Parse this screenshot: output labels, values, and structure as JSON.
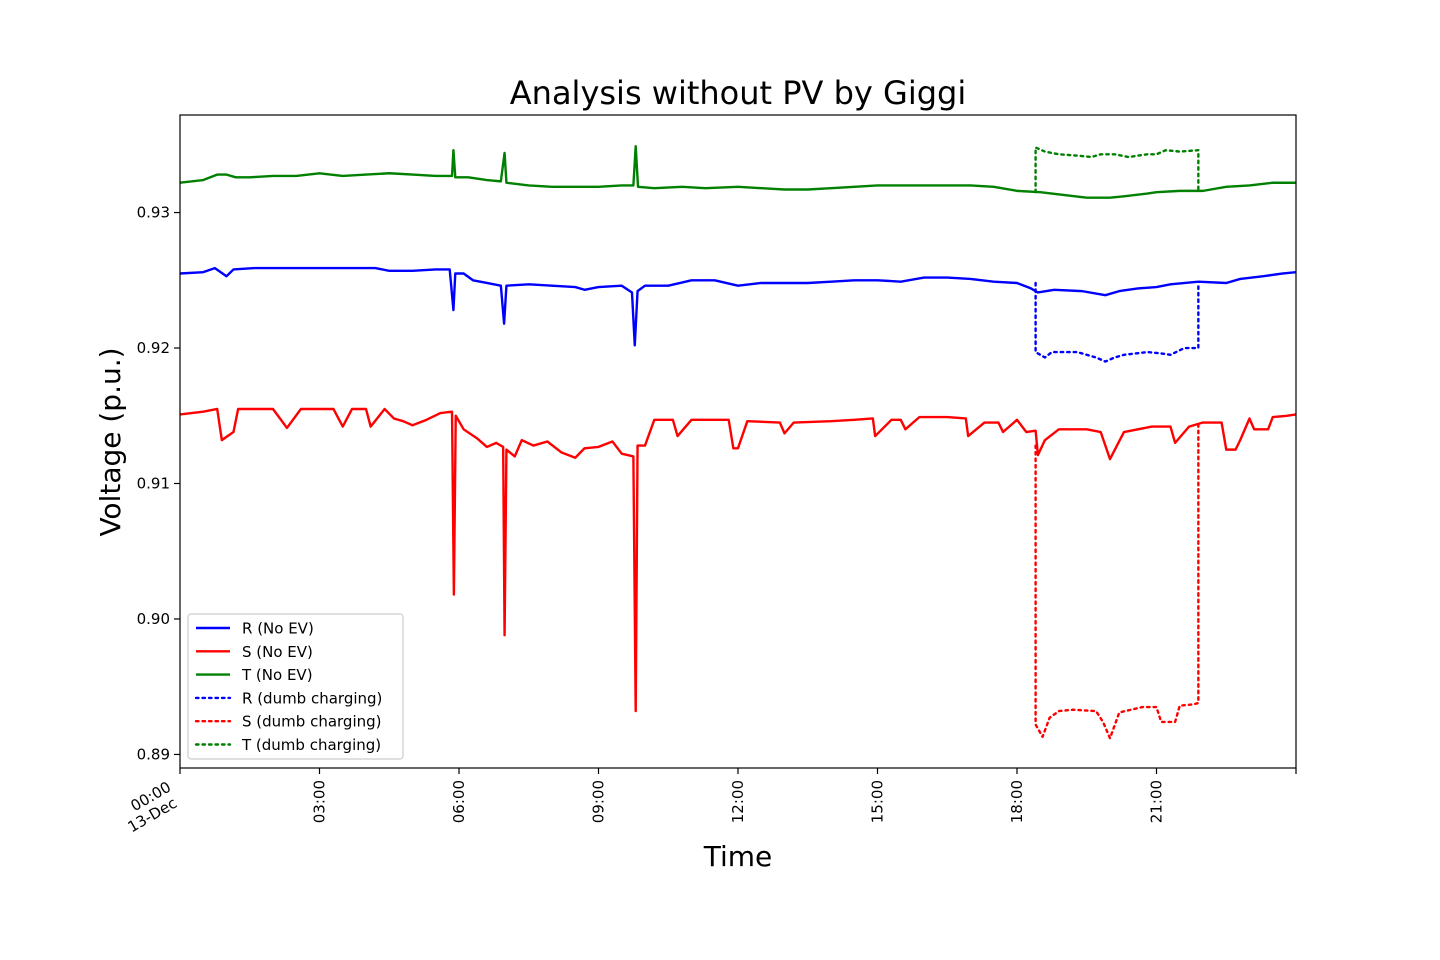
{
  "chart_data": {
    "type": "line",
    "title": "Analysis without PV by Giggi",
    "xlabel": "Time",
    "ylabel": "Voltage (p.u.)",
    "xlim": [
      "00:00",
      "24:00"
    ],
    "ylim": [
      0.889,
      0.9372
    ],
    "x_ticks": [
      {
        "t": 0,
        "label": "00:00",
        "sublabel": "13-Dec"
      },
      {
        "t": 3,
        "label": "03:00"
      },
      {
        "t": 6,
        "label": "06:00"
      },
      {
        "t": 9,
        "label": "09:00"
      },
      {
        "t": 12,
        "label": "12:00"
      },
      {
        "t": 15,
        "label": "15:00"
      },
      {
        "t": 18,
        "label": "18:00"
      },
      {
        "t": 21,
        "label": "21:00"
      },
      {
        "t": 24,
        "label": ""
      }
    ],
    "y_ticks": [
      {
        "v": 0.89,
        "label": "0.89"
      },
      {
        "v": 0.9,
        "label": "0.90"
      },
      {
        "v": 0.91,
        "label": "0.91"
      },
      {
        "v": 0.92,
        "label": "0.92"
      },
      {
        "v": 0.93,
        "label": "0.93"
      }
    ],
    "grid": false,
    "legend_position": "lower-left",
    "series": [
      {
        "name": "R (No EV)",
        "color": "#0000ff",
        "style": "solid",
        "points": [
          [
            0,
            0.9255
          ],
          [
            0.5,
            0.9256
          ],
          [
            0.75,
            0.9259
          ],
          [
            1.0,
            0.9253
          ],
          [
            1.15,
            0.9258
          ],
          [
            1.6,
            0.9259
          ],
          [
            2.3,
            0.9259
          ],
          [
            3.0,
            0.9259
          ],
          [
            3.5,
            0.9259
          ],
          [
            4.2,
            0.9259
          ],
          [
            4.5,
            0.9257
          ],
          [
            5.0,
            0.9257
          ],
          [
            5.5,
            0.9258
          ],
          [
            5.8,
            0.9258
          ],
          [
            5.88,
            0.9228
          ],
          [
            5.92,
            0.9255
          ],
          [
            6.1,
            0.9255
          ],
          [
            6.3,
            0.925
          ],
          [
            6.6,
            0.9248
          ],
          [
            6.9,
            0.9246
          ],
          [
            6.97,
            0.9218
          ],
          [
            7.02,
            0.9246
          ],
          [
            7.5,
            0.9247
          ],
          [
            8.0,
            0.9246
          ],
          [
            8.5,
            0.9245
          ],
          [
            8.7,
            0.9243
          ],
          [
            9.0,
            0.9245
          ],
          [
            9.5,
            0.9246
          ],
          [
            9.72,
            0.9241
          ],
          [
            9.78,
            0.9202
          ],
          [
            9.84,
            0.9242
          ],
          [
            10.0,
            0.9246
          ],
          [
            10.5,
            0.9246
          ],
          [
            11.0,
            0.925
          ],
          [
            11.5,
            0.925
          ],
          [
            12.0,
            0.9246
          ],
          [
            12.5,
            0.9248
          ],
          [
            13.0,
            0.9248
          ],
          [
            13.5,
            0.9248
          ],
          [
            14.0,
            0.9249
          ],
          [
            14.5,
            0.925
          ],
          [
            15.0,
            0.925
          ],
          [
            15.5,
            0.9249
          ],
          [
            16.0,
            0.9252
          ],
          [
            16.5,
            0.9252
          ],
          [
            17.0,
            0.9251
          ],
          [
            17.5,
            0.9249
          ],
          [
            18.0,
            0.9248
          ],
          [
            18.3,
            0.9244
          ],
          [
            18.45,
            0.9241
          ],
          [
            18.8,
            0.9243
          ],
          [
            19.4,
            0.9242
          ],
          [
            19.9,
            0.9239
          ],
          [
            20.2,
            0.9242
          ],
          [
            20.6,
            0.9244
          ],
          [
            21.0,
            0.9245
          ],
          [
            21.3,
            0.9247
          ],
          [
            21.9,
            0.9249
          ],
          [
            22.5,
            0.9248
          ],
          [
            22.8,
            0.9251
          ],
          [
            23.3,
            0.9253
          ],
          [
            23.7,
            0.9255
          ],
          [
            24,
            0.9256
          ]
        ]
      },
      {
        "name": "S (No EV)",
        "color": "#ff0000",
        "style": "solid",
        "points": [
          [
            0,
            0.9151
          ],
          [
            0.5,
            0.9153
          ],
          [
            0.8,
            0.9155
          ],
          [
            0.9,
            0.9132
          ],
          [
            1.15,
            0.9138
          ],
          [
            1.25,
            0.9155
          ],
          [
            2.0,
            0.9155
          ],
          [
            2.3,
            0.9141
          ],
          [
            2.6,
            0.9155
          ],
          [
            3.0,
            0.9155
          ],
          [
            3.3,
            0.9155
          ],
          [
            3.5,
            0.9142
          ],
          [
            3.7,
            0.9155
          ],
          [
            4.0,
            0.9155
          ],
          [
            4.1,
            0.9142
          ],
          [
            4.4,
            0.9155
          ],
          [
            4.6,
            0.9148
          ],
          [
            4.8,
            0.9146
          ],
          [
            5.0,
            0.9143
          ],
          [
            5.3,
            0.9147
          ],
          [
            5.6,
            0.9152
          ],
          [
            5.85,
            0.9153
          ],
          [
            5.89,
            0.9018
          ],
          [
            5.93,
            0.915
          ],
          [
            6.1,
            0.914
          ],
          [
            6.4,
            0.9133
          ],
          [
            6.6,
            0.9127
          ],
          [
            6.8,
            0.913
          ],
          [
            6.95,
            0.9127
          ],
          [
            6.98,
            0.8988
          ],
          [
            7.02,
            0.9125
          ],
          [
            7.2,
            0.912
          ],
          [
            7.35,
            0.9132
          ],
          [
            7.6,
            0.9128
          ],
          [
            7.9,
            0.9131
          ],
          [
            8.2,
            0.9123
          ],
          [
            8.5,
            0.9119
          ],
          [
            8.7,
            0.9126
          ],
          [
            9.0,
            0.9127
          ],
          [
            9.3,
            0.9131
          ],
          [
            9.5,
            0.9122
          ],
          [
            9.75,
            0.912
          ],
          [
            9.8,
            0.8932
          ],
          [
            9.84,
            0.9128
          ],
          [
            10.0,
            0.9128
          ],
          [
            10.2,
            0.9147
          ],
          [
            10.6,
            0.9147
          ],
          [
            10.7,
            0.9135
          ],
          [
            11.0,
            0.9147
          ],
          [
            11.5,
            0.9147
          ],
          [
            11.8,
            0.9147
          ],
          [
            11.9,
            0.9126
          ],
          [
            12.0,
            0.9126
          ],
          [
            12.2,
            0.9146
          ],
          [
            12.9,
            0.9145
          ],
          [
            13.0,
            0.9137
          ],
          [
            13.2,
            0.9145
          ],
          [
            14.0,
            0.9146
          ],
          [
            14.5,
            0.9147
          ],
          [
            14.9,
            0.9148
          ],
          [
            14.95,
            0.9135
          ],
          [
            15.3,
            0.9147
          ],
          [
            15.5,
            0.9147
          ],
          [
            15.6,
            0.914
          ],
          [
            15.9,
            0.9149
          ],
          [
            16.5,
            0.9149
          ],
          [
            16.9,
            0.9148
          ],
          [
            16.95,
            0.9135
          ],
          [
            17.3,
            0.9145
          ],
          [
            17.6,
            0.9145
          ],
          [
            17.7,
            0.9138
          ],
          [
            18.0,
            0.9147
          ],
          [
            18.2,
            0.9138
          ],
          [
            18.4,
            0.9139
          ],
          [
            18.45,
            0.9121
          ],
          [
            18.6,
            0.9132
          ],
          [
            18.9,
            0.914
          ],
          [
            19.5,
            0.914
          ],
          [
            19.8,
            0.9138
          ],
          [
            20.0,
            0.9118
          ],
          [
            20.3,
            0.9138
          ],
          [
            20.9,
            0.9142
          ],
          [
            21.3,
            0.9142
          ],
          [
            21.4,
            0.913
          ],
          [
            21.7,
            0.9142
          ],
          [
            22.0,
            0.9145
          ],
          [
            22.4,
            0.9145
          ],
          [
            22.5,
            0.9125
          ],
          [
            22.7,
            0.9125
          ],
          [
            22.8,
            0.9132
          ],
          [
            23.0,
            0.9148
          ],
          [
            23.1,
            0.914
          ],
          [
            23.4,
            0.914
          ],
          [
            23.5,
            0.9149
          ],
          [
            23.8,
            0.915
          ],
          [
            24,
            0.9151
          ]
        ]
      },
      {
        "name": "T (No EV)",
        "color": "#008000",
        "style": "solid",
        "points": [
          [
            0,
            0.9322
          ],
          [
            0.5,
            0.9324
          ],
          [
            0.8,
            0.9328
          ],
          [
            1.0,
            0.9328
          ],
          [
            1.2,
            0.9326
          ],
          [
            1.5,
            0.9326
          ],
          [
            2.0,
            0.9327
          ],
          [
            2.5,
            0.9327
          ],
          [
            3.0,
            0.9329
          ],
          [
            3.5,
            0.9327
          ],
          [
            4.0,
            0.9328
          ],
          [
            4.5,
            0.9329
          ],
          [
            5.0,
            0.9328
          ],
          [
            5.5,
            0.9327
          ],
          [
            5.85,
            0.9327
          ],
          [
            5.88,
            0.9346
          ],
          [
            5.92,
            0.9326
          ],
          [
            6.2,
            0.9326
          ],
          [
            6.6,
            0.9324
          ],
          [
            6.9,
            0.9323
          ],
          [
            6.98,
            0.9344
          ],
          [
            7.02,
            0.9322
          ],
          [
            7.5,
            0.932
          ],
          [
            8.0,
            0.9319
          ],
          [
            8.5,
            0.9319
          ],
          [
            9.0,
            0.9319
          ],
          [
            9.5,
            0.932
          ],
          [
            9.75,
            0.932
          ],
          [
            9.8,
            0.9349
          ],
          [
            9.85,
            0.9319
          ],
          [
            10.2,
            0.9318
          ],
          [
            10.8,
            0.9319
          ],
          [
            11.3,
            0.9318
          ],
          [
            12.0,
            0.9319
          ],
          [
            12.5,
            0.9318
          ],
          [
            13.0,
            0.9317
          ],
          [
            13.5,
            0.9317
          ],
          [
            14.0,
            0.9318
          ],
          [
            14.5,
            0.9319
          ],
          [
            15.0,
            0.932
          ],
          [
            15.5,
            0.932
          ],
          [
            16.0,
            0.932
          ],
          [
            16.5,
            0.932
          ],
          [
            17.0,
            0.932
          ],
          [
            17.5,
            0.9319
          ],
          [
            18.0,
            0.9316
          ],
          [
            18.5,
            0.9315
          ],
          [
            19.0,
            0.9313
          ],
          [
            19.5,
            0.9311
          ],
          [
            20.0,
            0.9311
          ],
          [
            20.3,
            0.9312
          ],
          [
            20.8,
            0.9314
          ],
          [
            21.0,
            0.9315
          ],
          [
            21.5,
            0.9316
          ],
          [
            22.0,
            0.9316
          ],
          [
            22.5,
            0.9319
          ],
          [
            23.0,
            0.932
          ],
          [
            23.5,
            0.9322
          ],
          [
            24,
            0.9322
          ]
        ]
      },
      {
        "name": "R (dumb charging)",
        "color": "#0000ff",
        "style": "dotted",
        "points": [
          [
            18.4,
            0.9248
          ],
          [
            18.4,
            0.9197
          ],
          [
            18.6,
            0.9193
          ],
          [
            18.75,
            0.9197
          ],
          [
            19.3,
            0.9197
          ],
          [
            19.7,
            0.9193
          ],
          [
            19.9,
            0.919
          ],
          [
            20.1,
            0.9193
          ],
          [
            20.3,
            0.9195
          ],
          [
            20.8,
            0.9197
          ],
          [
            21.1,
            0.9196
          ],
          [
            21.3,
            0.9195
          ],
          [
            21.6,
            0.92
          ],
          [
            21.9,
            0.92
          ],
          [
            21.9,
            0.9248
          ]
        ]
      },
      {
        "name": "S (dumb charging)",
        "color": "#ff0000",
        "style": "dotted",
        "points": [
          [
            18.4,
            0.9128
          ],
          [
            18.4,
            0.8922
          ],
          [
            18.55,
            0.8913
          ],
          [
            18.7,
            0.8927
          ],
          [
            18.9,
            0.8932
          ],
          [
            19.2,
            0.8933
          ],
          [
            19.7,
            0.8932
          ],
          [
            19.85,
            0.8924
          ],
          [
            20.0,
            0.8912
          ],
          [
            20.2,
            0.8931
          ],
          [
            20.7,
            0.8935
          ],
          [
            21.0,
            0.8935
          ],
          [
            21.1,
            0.8924
          ],
          [
            21.4,
            0.8924
          ],
          [
            21.5,
            0.8936
          ],
          [
            21.8,
            0.8937
          ],
          [
            21.9,
            0.8938
          ],
          [
            21.9,
            0.9145
          ]
        ]
      },
      {
        "name": "T (dumb charging)",
        "color": "#008000",
        "style": "dotted",
        "points": [
          [
            18.4,
            0.9315
          ],
          [
            18.4,
            0.9348
          ],
          [
            18.6,
            0.9345
          ],
          [
            18.9,
            0.9343
          ],
          [
            19.3,
            0.9342
          ],
          [
            19.6,
            0.9341
          ],
          [
            19.8,
            0.9343
          ],
          [
            20.1,
            0.9343
          ],
          [
            20.4,
            0.9341
          ],
          [
            20.8,
            0.9343
          ],
          [
            21.0,
            0.9343
          ],
          [
            21.2,
            0.9346
          ],
          [
            21.5,
            0.9345
          ],
          [
            21.9,
            0.9346
          ],
          [
            21.9,
            0.9316
          ]
        ]
      }
    ]
  }
}
